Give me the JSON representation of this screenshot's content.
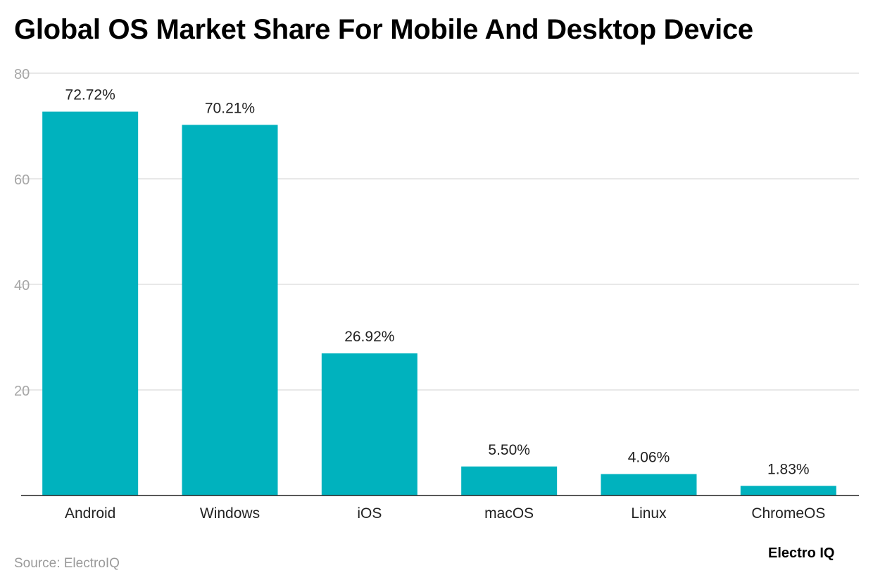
{
  "title": "Global OS Market Share For Mobile And Desktop Device",
  "source": "Source: ElectroIQ",
  "brand": "Electro IQ",
  "colors": {
    "bar": "#00B2BE",
    "grid": "#e0e0e0",
    "axis": "#222222",
    "tick": "#a6a6a6",
    "label": "#222222"
  },
  "chart_data": {
    "type": "bar",
    "title": "Global OS Market Share For Mobile And Desktop Device",
    "xlabel": "",
    "ylabel": "",
    "categories": [
      "Android",
      "Windows",
      "iOS",
      "macOS",
      "Linux",
      "ChromeOS"
    ],
    "values": [
      72.72,
      70.21,
      26.92,
      5.5,
      4.06,
      1.83
    ],
    "data_labels": [
      "72.72%",
      "70.21%",
      "26.92%",
      "5.50%",
      "4.06%",
      "1.83%"
    ],
    "ylim": [
      0,
      80
    ],
    "yticks": [
      20,
      40,
      60,
      80
    ],
    "grid": true
  }
}
